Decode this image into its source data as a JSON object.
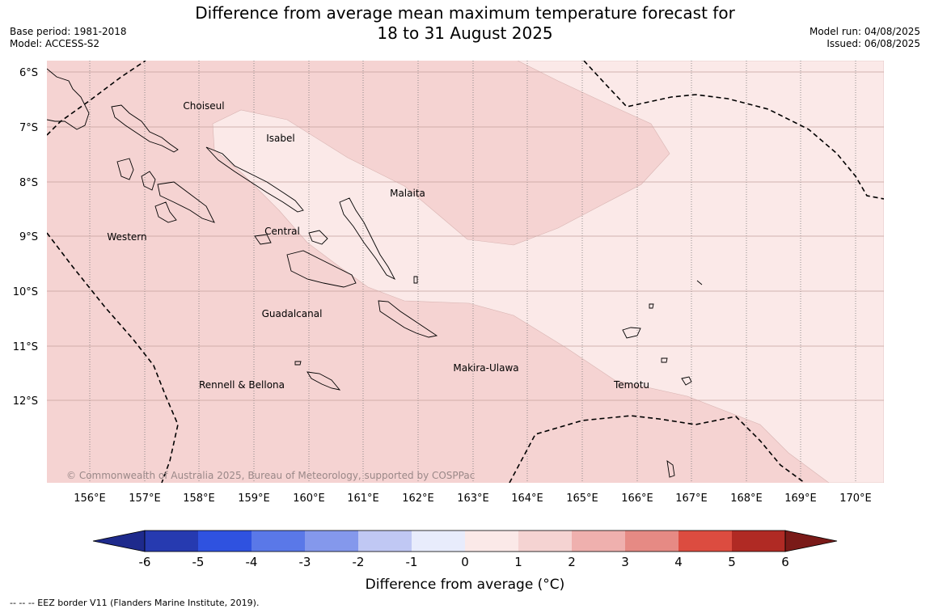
{
  "title_line1": "Difference from average mean maximum temperature forecast for",
  "title_line2": "18 to 31 August 2025",
  "base_period": "Base period: 1981-2018",
  "model": "Model: ACCESS-S2",
  "model_run": "Model run: 04/08/2025",
  "issued": "Issued: 06/08/2025",
  "copyright": "© Commonwealth of Australia 2025, Bureau of Meteorology, supported by COSPPac",
  "lat_labels": [
    "6°S",
    "7°S",
    "8°S",
    "9°S",
    "10°S",
    "11°S",
    "12°S"
  ],
  "lon_labels": [
    "156°E",
    "157°E",
    "158°E",
    "159°E",
    "160°E",
    "161°E",
    "162°E",
    "163°E",
    "164°E",
    "165°E",
    "166°E",
    "167°E",
    "168°E",
    "169°E",
    "170°E"
  ],
  "regions": {
    "choiseul": "Choiseul",
    "isabel": "Isabel",
    "malaita": "Malaita",
    "western": "Western",
    "central": "Central",
    "guadalcanal": "Guadalcanal",
    "makira": "Makira-Ulawa",
    "rennell": "Rennell & Bellona",
    "temotu": "Temotu"
  },
  "legend": {
    "title": "Difference from average (°C)",
    "ticks": [
      "-6",
      "-5",
      "-4",
      "-3",
      "-2",
      "-1",
      "0",
      "1",
      "2",
      "3",
      "4",
      "5",
      "6"
    ],
    "colors": [
      "#1e2a8c",
      "#263ab0",
      "#2f52e0",
      "#5a78e8",
      "#8498ec",
      "#c0c8f4",
      "#e8ecfc",
      "#fbe9e8",
      "#f5d3d2",
      "#efb0ae",
      "#e68a84",
      "#dc4c40",
      "#b02a24",
      "#7a1a18"
    ]
  },
  "footer": "--  --  -- EEZ border V11 (Flanders Marine Institute, 2019).",
  "colors": {
    "anomaly_0_1": "#fbe9e8",
    "anomaly_1_2": "#f5d3d2"
  }
}
